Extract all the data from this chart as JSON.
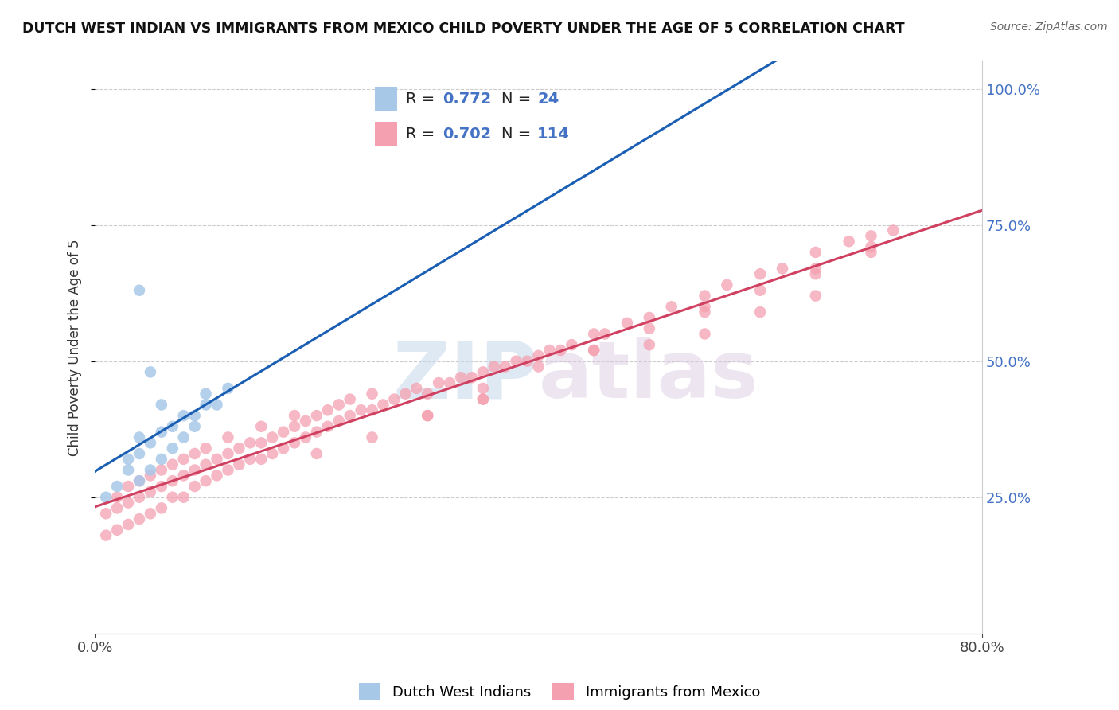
{
  "title": "DUTCH WEST INDIAN VS IMMIGRANTS FROM MEXICO CHILD POVERTY UNDER THE AGE OF 5 CORRELATION CHART",
  "source": "Source: ZipAtlas.com",
  "watermark": "ZIPAtlas",
  "blue_R": 0.772,
  "blue_N": 24,
  "pink_R": 0.702,
  "pink_N": 114,
  "blue_scatter_color": "#a8c8e8",
  "pink_scatter_color": "#f4a0b0",
  "line_blue_color": "#1a5fb4",
  "line_pink_color": "#d04060",
  "xmin": 0.0,
  "xmax": 0.8,
  "ymin": 0.0,
  "ymax": 1.05,
  "blue_points_x": [
    0.01,
    0.02,
    0.03,
    0.03,
    0.04,
    0.04,
    0.04,
    0.05,
    0.05,
    0.06,
    0.06,
    0.07,
    0.07,
    0.08,
    0.09,
    0.09,
    0.1,
    0.1,
    0.11,
    0.12,
    0.04,
    0.05,
    0.06,
    0.08
  ],
  "blue_points_y": [
    0.25,
    0.27,
    0.3,
    0.32,
    0.28,
    0.33,
    0.36,
    0.3,
    0.35,
    0.32,
    0.37,
    0.34,
    0.38,
    0.36,
    0.38,
    0.4,
    0.42,
    0.44,
    0.42,
    0.45,
    0.63,
    0.48,
    0.42,
    0.4
  ],
  "pink_points_x": [
    0.01,
    0.01,
    0.02,
    0.02,
    0.02,
    0.03,
    0.03,
    0.03,
    0.04,
    0.04,
    0.04,
    0.05,
    0.05,
    0.05,
    0.06,
    0.06,
    0.06,
    0.07,
    0.07,
    0.07,
    0.08,
    0.08,
    0.08,
    0.09,
    0.09,
    0.09,
    0.1,
    0.1,
    0.1,
    0.11,
    0.11,
    0.12,
    0.12,
    0.12,
    0.13,
    0.13,
    0.14,
    0.14,
    0.15,
    0.15,
    0.15,
    0.16,
    0.16,
    0.17,
    0.17,
    0.18,
    0.18,
    0.18,
    0.19,
    0.19,
    0.2,
    0.2,
    0.21,
    0.21,
    0.22,
    0.22,
    0.23,
    0.23,
    0.24,
    0.25,
    0.25,
    0.26,
    0.27,
    0.28,
    0.29,
    0.3,
    0.31,
    0.32,
    0.33,
    0.34,
    0.35,
    0.36,
    0.37,
    0.38,
    0.39,
    0.4,
    0.41,
    0.42,
    0.43,
    0.45,
    0.46,
    0.48,
    0.5,
    0.52,
    0.55,
    0.57,
    0.6,
    0.62,
    0.65,
    0.68,
    0.7,
    0.72,
    0.5,
    0.55,
    0.6,
    0.65,
    0.35,
    0.4,
    0.45,
    0.5,
    0.55,
    0.6,
    0.65,
    0.7,
    0.3,
    0.35,
    0.2,
    0.25,
    0.3,
    0.35,
    0.45,
    0.55,
    0.65,
    0.7
  ],
  "pink_points_y": [
    0.18,
    0.22,
    0.19,
    0.23,
    0.25,
    0.2,
    0.24,
    0.27,
    0.21,
    0.25,
    0.28,
    0.22,
    0.26,
    0.29,
    0.23,
    0.27,
    0.3,
    0.25,
    0.28,
    0.31,
    0.25,
    0.29,
    0.32,
    0.27,
    0.3,
    0.33,
    0.28,
    0.31,
    0.34,
    0.29,
    0.32,
    0.3,
    0.33,
    0.36,
    0.31,
    0.34,
    0.32,
    0.35,
    0.32,
    0.35,
    0.38,
    0.33,
    0.36,
    0.34,
    0.37,
    0.35,
    0.38,
    0.4,
    0.36,
    0.39,
    0.37,
    0.4,
    0.38,
    0.41,
    0.39,
    0.42,
    0.4,
    0.43,
    0.41,
    0.41,
    0.44,
    0.42,
    0.43,
    0.44,
    0.45,
    0.44,
    0.46,
    0.46,
    0.47,
    0.47,
    0.48,
    0.49,
    0.49,
    0.5,
    0.5,
    0.51,
    0.52,
    0.52,
    0.53,
    0.55,
    0.55,
    0.57,
    0.58,
    0.6,
    0.62,
    0.64,
    0.66,
    0.67,
    0.7,
    0.72,
    0.73,
    0.74,
    0.53,
    0.55,
    0.59,
    0.62,
    0.45,
    0.49,
    0.52,
    0.56,
    0.59,
    0.63,
    0.66,
    0.7,
    0.4,
    0.43,
    0.33,
    0.36,
    0.4,
    0.43,
    0.52,
    0.6,
    0.67,
    0.71
  ]
}
